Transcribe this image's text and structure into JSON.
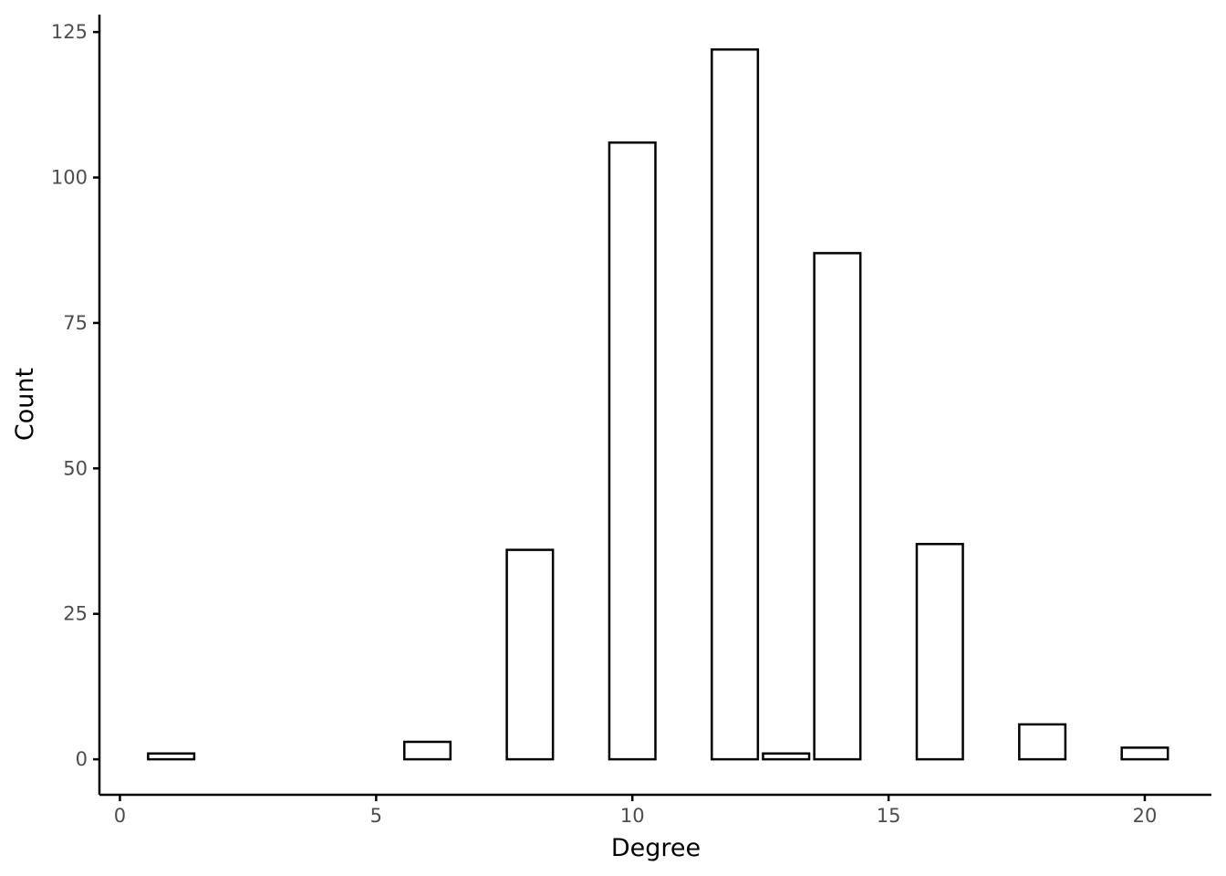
{
  "chart_data": {
    "type": "bar",
    "title": "",
    "xlabel": "Degree",
    "ylabel": "Count",
    "x": [
      1,
      6,
      8,
      10,
      12,
      13,
      14,
      16,
      18,
      20
    ],
    "values": [
      1,
      3,
      36,
      106,
      122,
      1,
      87,
      37,
      6,
      2
    ],
    "bar_width": 0.9,
    "xlim": [
      -0.4,
      21.3
    ],
    "ylim": [
      -6.1,
      128
    ],
    "xticks": [
      0,
      5,
      10,
      15,
      20
    ],
    "yticks": [
      0,
      25,
      50,
      75,
      100,
      125
    ],
    "grid": false,
    "legend": "none",
    "bar_fill": "#ffffff",
    "bar_outline": "#000000"
  }
}
